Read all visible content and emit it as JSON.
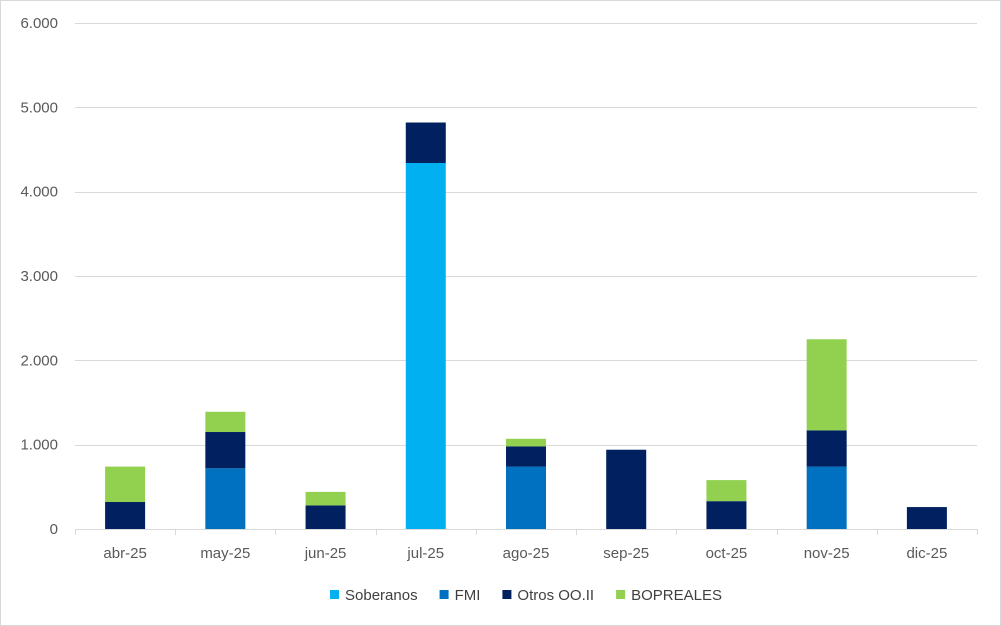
{
  "chart_data": {
    "type": "bar",
    "stacked": true,
    "title": "",
    "xlabel": "",
    "ylabel": "",
    "ylim": [
      0,
      6000
    ],
    "yticks": [
      0,
      1000,
      2000,
      3000,
      4000,
      5000,
      6000
    ],
    "ytick_labels": [
      "0",
      "1.000",
      "2.000",
      "3.000",
      "4.000",
      "5.000",
      "6.000"
    ],
    "grid": true,
    "legend_position": "bottom",
    "categories": [
      "abr-25",
      "may-25",
      "jun-25",
      "jul-25",
      "ago-25",
      "sep-25",
      "oct-25",
      "nov-25",
      "dic-25"
    ],
    "series": [
      {
        "name": "Soberanos",
        "color": "#00B0F0",
        "values": [
          0,
          0,
          0,
          4340,
          0,
          0,
          0,
          0,
          0
        ]
      },
      {
        "name": "FMI",
        "color": "#0070C0",
        "values": [
          0,
          720,
          0,
          0,
          740,
          0,
          0,
          740,
          0
        ]
      },
      {
        "name": "Otros OO.II",
        "color": "#002060",
        "values": [
          320,
          430,
          280,
          480,
          240,
          940,
          330,
          430,
          260
        ]
      },
      {
        "name": "BOPREALES",
        "color": "#92D050",
        "values": [
          420,
          240,
          160,
          0,
          90,
          0,
          250,
          1080,
          0
        ]
      }
    ]
  }
}
